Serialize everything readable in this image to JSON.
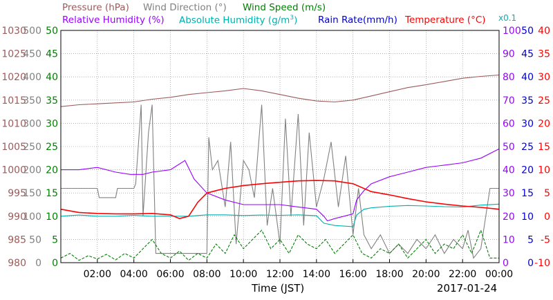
{
  "legend": {
    "pressure": "Pressure (hPa)",
    "wind_dir": "Wind Direction (°)",
    "wind_speed": "Wind Speed (m/s)",
    "rel_hum": "Relative Humidity (%)",
    "abs_hum_prefix": "Absolute Humidity (g/m",
    "abs_hum_exp": "3",
    "abs_hum_suffix": ")",
    "rain": "Rain Rate(mm/h)",
    "temp_prefix": "Temperature (",
    "temp_unit": "°C",
    "temp_suffix": ")",
    "scale": "x0.1"
  },
  "xlabel": "Time (JST)",
  "date": "2017-01-24",
  "colors": {
    "pressure": "#9c5a5a",
    "wind_dir": "#808080",
    "wind_speed": "#008000",
    "rel_hum": "#9900ff",
    "abs_hum": "#00b0b0",
    "rain": "#0000cc",
    "temp": "#ff0000",
    "grid": "#808080"
  },
  "chart_data": {
    "type": "line",
    "title": "",
    "xlabel": "Time (JST)",
    "x_ticks": [
      "02:00",
      "04:00",
      "06:00",
      "08:00",
      "10:00",
      "12:00",
      "14:00",
      "16:00",
      "18:00",
      "20:00",
      "22:00",
      "00:00"
    ],
    "x_range_hours": [
      0,
      24
    ],
    "grid": true,
    "axes": {
      "pressure": {
        "min": 980,
        "max": 1030,
        "ticks": [
          980,
          985,
          990,
          995,
          1000,
          1005,
          1010,
          1015,
          1020,
          1025,
          1030
        ]
      },
      "wind_dir": {
        "min": 0,
        "max": 500,
        "ticks": [
          0,
          50,
          100,
          150,
          200,
          250,
          300,
          350,
          400,
          450,
          500
        ]
      },
      "wind_speed": {
        "min": 0,
        "max": 50,
        "ticks": [
          0,
          5,
          10,
          15,
          20,
          25,
          30,
          35,
          40,
          45,
          50
        ]
      },
      "rel_hum": {
        "min": 0,
        "max": 100,
        "ticks": [
          0,
          10,
          20,
          30,
          40,
          50,
          60,
          70,
          80,
          90,
          100
        ]
      },
      "abs_hum": {
        "min": 0,
        "max": 100,
        "note": "x0.1"
      },
      "rain": {
        "min": 0,
        "max": 50,
        "ticks": [
          0,
          5,
          10,
          15,
          20,
          25,
          30,
          35,
          40,
          45,
          50
        ]
      },
      "temp": {
        "min": -10,
        "max": 40,
        "ticks": [
          -10,
          -5,
          0,
          5,
          10,
          15,
          20,
          25,
          30,
          35,
          40
        ]
      }
    },
    "series": [
      {
        "name": "Pressure (hPa)",
        "axis": "pressure",
        "style": "solid",
        "x": [
          0,
          1,
          2,
          3,
          4,
          5,
          6,
          7,
          8,
          9,
          10,
          11,
          12,
          13,
          14,
          15,
          16,
          17,
          18,
          19,
          20,
          21,
          22,
          23,
          24
        ],
        "values": [
          1013.6,
          1014.0,
          1014.2,
          1014.4,
          1014.6,
          1015.2,
          1015.6,
          1016.2,
          1016.6,
          1017.0,
          1017.5,
          1017.0,
          1016.2,
          1015.4,
          1014.8,
          1014.6,
          1015.0,
          1015.9,
          1016.8,
          1017.7,
          1018.3,
          1019.0,
          1019.7,
          1020.1,
          1020.4
        ]
      },
      {
        "name": "Wind Direction (°)",
        "axis": "wind_dir",
        "style": "solid",
        "x": [
          0,
          2,
          2.1,
          3,
          3.1,
          4,
          4.1,
          4.4,
          4.5,
          4.8,
          5,
          5.2,
          6,
          7,
          8,
          8.1,
          8.3,
          8.6,
          9,
          9.3,
          9.6,
          10,
          10.3,
          10.6,
          11,
          11.3,
          11.6,
          12,
          12.3,
          12.6,
          13,
          13.3,
          13.6,
          14,
          14.4,
          14.8,
          15.2,
          15.6,
          16,
          16.3,
          16.6,
          17,
          17.5,
          18,
          18.5,
          19,
          19.5,
          20,
          20.5,
          21,
          21.5,
          22,
          22.3,
          22.6,
          23,
          23.5,
          24
        ],
        "values": [
          160,
          160,
          140,
          140,
          160,
          160,
          170,
          340,
          100,
          280,
          340,
          20,
          20,
          20,
          20,
          270,
          200,
          220,
          120,
          260,
          40,
          220,
          200,
          140,
          340,
          80,
          160,
          40,
          310,
          100,
          320,
          80,
          280,
          120,
          180,
          260,
          120,
          230,
          60,
          160,
          60,
          30,
          60,
          20,
          40,
          20,
          50,
          30,
          60,
          20,
          50,
          30,
          70,
          10,
          30,
          160,
          160
        ]
      },
      {
        "name": "Wind Speed (m/s)",
        "axis": "wind_speed",
        "style": "dashed",
        "x": [
          0,
          0.5,
          1,
          1.5,
          2,
          2.5,
          3,
          3.5,
          4,
          4.5,
          5,
          5.5,
          6,
          6.5,
          7,
          7.5,
          8,
          8.5,
          9,
          9.5,
          10,
          10.5,
          11,
          11.5,
          12,
          12.5,
          13,
          13.5,
          14,
          14.5,
          15,
          15.5,
          16,
          16.5,
          17,
          17.5,
          18,
          18.5,
          19,
          19.5,
          20,
          20.5,
          21,
          21.5,
          22,
          22.5,
          23,
          23.5,
          24
        ],
        "values": [
          1,
          2,
          0.5,
          1.5,
          0.8,
          1.8,
          0.6,
          2,
          1,
          3,
          5,
          2,
          1,
          2.5,
          0.5,
          2,
          1,
          4,
          2,
          6,
          3,
          5,
          7,
          3,
          5,
          2,
          6,
          4,
          3,
          5,
          2,
          4,
          6,
          2,
          1,
          3,
          2,
          4,
          1,
          3,
          5,
          2,
          4,
          3,
          6,
          2,
          7,
          1,
          1
        ]
      },
      {
        "name": "Relative Humidity (%)",
        "axis": "rel_hum",
        "style": "solid",
        "x": [
          0,
          1,
          2,
          3,
          3.8,
          4.5,
          5,
          6,
          6.8,
          7.3,
          8,
          9,
          10,
          11,
          12,
          13,
          14,
          14.4,
          14.6,
          15,
          15.5,
          16,
          16.2,
          16.6,
          17,
          18,
          19,
          20,
          21,
          22,
          23,
          24
        ],
        "values": [
          40,
          40,
          41,
          39,
          38,
          38,
          39,
          40,
          44,
          36,
          30,
          27,
          25,
          25,
          25,
          24,
          23,
          20,
          18,
          19,
          20,
          21,
          27,
          31,
          34,
          37,
          39,
          41,
          42,
          43,
          45,
          49
        ]
      },
      {
        "name": "Absolute Humidity (g/m3)",
        "axis": "abs_hum",
        "style": "solid",
        "x": [
          0,
          1,
          2,
          3,
          4,
          5,
          6,
          7,
          8,
          9,
          10,
          11,
          12,
          13,
          14,
          14.4,
          15,
          16,
          16.2,
          16.6,
          17,
          18,
          19,
          20,
          21,
          22,
          23,
          24
        ],
        "values": [
          20,
          20.5,
          20,
          20,
          20.4,
          20,
          20,
          20,
          20.6,
          20.6,
          20.3,
          20.5,
          20.4,
          20.6,
          20.2,
          17,
          16,
          15.5,
          20.5,
          23,
          23.6,
          24.3,
          24.6,
          24.4,
          24.1,
          24,
          24.8,
          25.2
        ]
      },
      {
        "name": "Rain Rate(mm/h)",
        "axis": "rain",
        "style": "solid",
        "x": [
          0,
          24
        ],
        "values": [
          0,
          0
        ]
      },
      {
        "name": "Temperature (°C)",
        "axis": "temp",
        "style": "solid",
        "x": [
          0,
          1,
          2,
          3,
          4,
          5,
          6,
          6.5,
          7,
          7.5,
          8,
          8.5,
          9,
          10,
          11,
          12,
          13,
          14,
          15,
          16,
          17,
          18,
          19,
          20,
          21,
          22,
          23,
          24
        ],
        "values": [
          1.5,
          0.8,
          0.6,
          0.5,
          0.5,
          0.6,
          0.3,
          -0.5,
          0,
          3,
          5,
          5.5,
          6,
          6.6,
          7,
          7.3,
          7.6,
          7.7,
          7.6,
          7,
          5.3,
          4.6,
          3.8,
          3.1,
          2.6,
          2.2,
          1.9,
          1.5
        ]
      }
    ]
  }
}
